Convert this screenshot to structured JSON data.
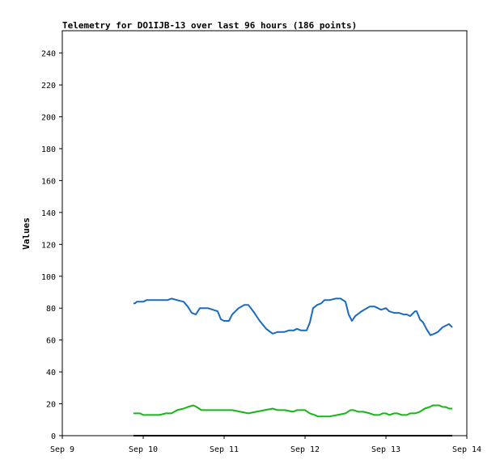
{
  "chart_data": {
    "type": "line",
    "title": "Telemetry for DO1IJB-13 over last 96 hours (186 points)",
    "xlabel": "",
    "ylabel": "Values",
    "x_ticks": [
      "Sep 9",
      "Sep 10",
      "Sep 11",
      "Sep 12",
      "Sep 13",
      "Sep 14"
    ],
    "xlim": [
      0,
      5
    ],
    "y_ticks": [
      0,
      20,
      40,
      60,
      80,
      100,
      120,
      140,
      160,
      180,
      200,
      220,
      240
    ],
    "ylim": [
      0,
      254
    ],
    "grid": false,
    "legend": "none",
    "series": [
      {
        "color": "#1a6bbf",
        "points": [
          [
            0.88,
            83
          ],
          [
            0.9,
            83
          ],
          [
            0.92,
            84
          ],
          [
            1.0,
            84
          ],
          [
            1.04,
            85
          ],
          [
            1.1,
            85
          ],
          [
            1.2,
            85
          ],
          [
            1.3,
            85
          ],
          [
            1.35,
            86
          ],
          [
            1.42,
            85
          ],
          [
            1.5,
            84
          ],
          [
            1.55,
            81
          ],
          [
            1.6,
            77
          ],
          [
            1.65,
            76
          ],
          [
            1.7,
            80
          ],
          [
            1.8,
            80
          ],
          [
            1.86,
            79
          ],
          [
            1.92,
            78
          ],
          [
            1.96,
            73
          ],
          [
            2.0,
            72
          ],
          [
            2.06,
            72
          ],
          [
            2.1,
            76
          ],
          [
            2.18,
            80
          ],
          [
            2.25,
            82
          ],
          [
            2.3,
            82
          ],
          [
            2.36,
            78
          ],
          [
            2.44,
            72
          ],
          [
            2.52,
            67
          ],
          [
            2.6,
            64
          ],
          [
            2.66,
            65
          ],
          [
            2.74,
            65
          ],
          [
            2.8,
            66
          ],
          [
            2.86,
            66
          ],
          [
            2.9,
            67
          ],
          [
            2.95,
            66
          ],
          [
            3.02,
            66
          ],
          [
            3.06,
            71
          ],
          [
            3.1,
            80
          ],
          [
            3.15,
            82
          ],
          [
            3.2,
            83
          ],
          [
            3.24,
            85
          ],
          [
            3.3,
            85
          ],
          [
            3.38,
            86
          ],
          [
            3.44,
            86
          ],
          [
            3.5,
            84
          ],
          [
            3.54,
            76
          ],
          [
            3.58,
            72
          ],
          [
            3.62,
            75
          ],
          [
            3.7,
            78
          ],
          [
            3.8,
            81
          ],
          [
            3.86,
            81
          ],
          [
            3.9,
            80
          ],
          [
            3.94,
            79
          ],
          [
            4.0,
            80
          ],
          [
            4.04,
            78
          ],
          [
            4.1,
            77
          ],
          [
            4.16,
            77
          ],
          [
            4.22,
            76
          ],
          [
            4.26,
            76
          ],
          [
            4.3,
            75
          ],
          [
            4.36,
            78
          ],
          [
            4.38,
            78
          ],
          [
            4.42,
            73
          ],
          [
            4.46,
            71
          ],
          [
            4.5,
            67
          ],
          [
            4.55,
            63
          ],
          [
            4.6,
            64
          ],
          [
            4.64,
            65
          ],
          [
            4.7,
            68
          ],
          [
            4.74,
            69
          ],
          [
            4.78,
            70
          ],
          [
            4.8,
            69
          ],
          [
            4.82,
            68
          ]
        ]
      },
      {
        "color": "#14b814",
        "points": [
          [
            0.88,
            14
          ],
          [
            0.96,
            14
          ],
          [
            1.0,
            13
          ],
          [
            1.1,
            13
          ],
          [
            1.2,
            13
          ],
          [
            1.28,
            14
          ],
          [
            1.35,
            14
          ],
          [
            1.42,
            16
          ],
          [
            1.5,
            17
          ],
          [
            1.55,
            18
          ],
          [
            1.62,
            19
          ],
          [
            1.66,
            18
          ],
          [
            1.72,
            16
          ],
          [
            1.8,
            16
          ],
          [
            1.9,
            16
          ],
          [
            2.0,
            16
          ],
          [
            2.1,
            16
          ],
          [
            2.2,
            15
          ],
          [
            2.3,
            14
          ],
          [
            2.4,
            15
          ],
          [
            2.5,
            16
          ],
          [
            2.6,
            17
          ],
          [
            2.66,
            16
          ],
          [
            2.75,
            16
          ],
          [
            2.85,
            15
          ],
          [
            2.9,
            16
          ],
          [
            3.0,
            16
          ],
          [
            3.06,
            14
          ],
          [
            3.12,
            13
          ],
          [
            3.16,
            12
          ],
          [
            3.2,
            12
          ],
          [
            3.3,
            12
          ],
          [
            3.4,
            13
          ],
          [
            3.5,
            14
          ],
          [
            3.56,
            16
          ],
          [
            3.6,
            16
          ],
          [
            3.66,
            15
          ],
          [
            3.72,
            15
          ],
          [
            3.8,
            14
          ],
          [
            3.86,
            13
          ],
          [
            3.92,
            13
          ],
          [
            3.96,
            14
          ],
          [
            4.0,
            14
          ],
          [
            4.04,
            13
          ],
          [
            4.1,
            14
          ],
          [
            4.14,
            14
          ],
          [
            4.2,
            13
          ],
          [
            4.26,
            13
          ],
          [
            4.3,
            14
          ],
          [
            4.36,
            14
          ],
          [
            4.42,
            15
          ],
          [
            4.48,
            17
          ],
          [
            4.54,
            18
          ],
          [
            4.58,
            19
          ],
          [
            4.62,
            19
          ],
          [
            4.66,
            19
          ],
          [
            4.7,
            18
          ],
          [
            4.74,
            18
          ],
          [
            4.78,
            17
          ],
          [
            4.82,
            17
          ]
        ]
      },
      {
        "color": "#000000",
        "points": [
          [
            0.88,
            0
          ],
          [
            4.82,
            0
          ]
        ]
      }
    ]
  }
}
